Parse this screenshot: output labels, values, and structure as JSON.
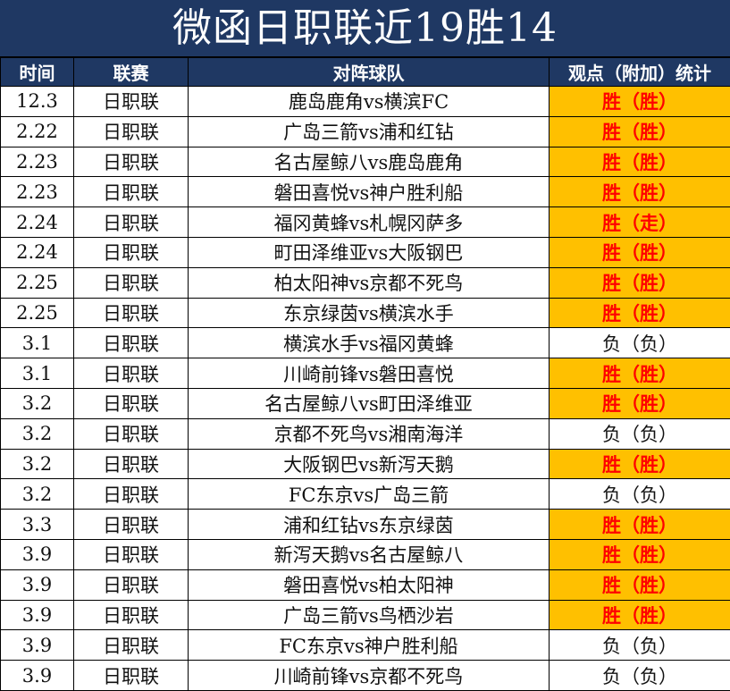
{
  "title": "微函日职联近19胜14",
  "headers": [
    "时间",
    "联赛",
    "对阵球队",
    "观点（附加）统计"
  ],
  "colors": {
    "header_bg": "#1f3863",
    "win_bg": "#ffc000",
    "win_text": "#ff0000"
  },
  "rows": [
    {
      "date": "12.3",
      "league": "日职联",
      "match": "鹿岛鹿角vs横滨FC",
      "result": "胜（胜）",
      "win": true
    },
    {
      "date": "2.22",
      "league": "日职联",
      "match": "广岛三箭vs浦和红钻",
      "result": "胜（胜）",
      "win": true
    },
    {
      "date": "2.23",
      "league": "日职联",
      "match": "名古屋鲸八vs鹿岛鹿角",
      "result": "胜（胜）",
      "win": true
    },
    {
      "date": "2.23",
      "league": "日职联",
      "match": "磐田喜悦vs神户胜利船",
      "result": "胜（胜）",
      "win": true
    },
    {
      "date": "2.24",
      "league": "日职联",
      "match": "福冈黄蜂vs札幌冈萨多",
      "result": "胜（走）",
      "win": true
    },
    {
      "date": "2.24",
      "league": "日职联",
      "match": "町田泽维亚vs大阪钢巴",
      "result": "胜（胜）",
      "win": true
    },
    {
      "date": "2.25",
      "league": "日职联",
      "match": "柏太阳神vs京都不死鸟",
      "result": "胜（胜）",
      "win": true
    },
    {
      "date": "2.25",
      "league": "日职联",
      "match": "东京绿茵vs横滨水手",
      "result": "胜（胜）",
      "win": true
    },
    {
      "date": "3.1",
      "league": "日职联",
      "match": "横滨水手vs福冈黄蜂",
      "result": "负（负）",
      "win": false
    },
    {
      "date": "3.1",
      "league": "日职联",
      "match": "川崎前锋vs磐田喜悦",
      "result": "胜（胜）",
      "win": true
    },
    {
      "date": "3.2",
      "league": "日职联",
      "match": "名古屋鲸八vs町田泽维亚",
      "result": "胜（胜）",
      "win": true
    },
    {
      "date": "3.2",
      "league": "日职联",
      "match": "京都不死鸟vs湘南海洋",
      "result": "负（负）",
      "win": false
    },
    {
      "date": "3.2",
      "league": "日职联",
      "match": "大阪钢巴vs新泻天鹅",
      "result": "胜（胜）",
      "win": true
    },
    {
      "date": "3.2",
      "league": "日职联",
      "match": "FC东京vs广岛三箭",
      "result": "负（负）",
      "win": false
    },
    {
      "date": "3.3",
      "league": "日职联",
      "match": "浦和红钻vs东京绿茵",
      "result": "胜（胜）",
      "win": true
    },
    {
      "date": "3.9",
      "league": "日职联",
      "match": "新泻天鹅vs名古屋鲸八",
      "result": "胜（胜）",
      "win": true
    },
    {
      "date": "3.9",
      "league": "日职联",
      "match": "磐田喜悦vs柏太阳神",
      "result": "胜（胜）",
      "win": true
    },
    {
      "date": "3.9",
      "league": "日职联",
      "match": "广岛三箭vs鸟栖沙岩",
      "result": "胜（胜）",
      "win": true
    },
    {
      "date": "3.9",
      "league": "日职联",
      "match": "FC东京vs神户胜利船",
      "result": "负（负）",
      "win": false
    },
    {
      "date": "3.9",
      "league": "日职联",
      "match": "川崎前锋vs京都不死鸟",
      "result": "负（负）",
      "win": false
    }
  ]
}
